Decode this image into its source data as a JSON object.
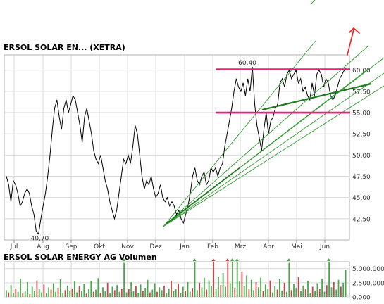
{
  "price_title": "ERSOL SOLAR EN... (XETRA)",
  "volume_title": "ERSOL SOLAR ENERGY AG Volumen",
  "colors": {
    "price_line": "#000000",
    "trend_light": "#2e9a2e",
    "trend_dark": "#1f7a1f",
    "level_line": "#ee1f7a",
    "arrow": "#ee2222",
    "volume_up": "#4aa84a",
    "volume_down": "#c04a4a",
    "grid": "#d8d8d8"
  },
  "chart_data": [
    {
      "type": "line",
      "title": "ERSOL SOLAR EN... (XETRA)",
      "x_tick_labels": [
        "Jul",
        "Aug",
        "Sep",
        "Okt",
        "Nov",
        "Dez",
        "Jan",
        "Feb",
        "Mrz",
        "Apr",
        "Mai",
        "Jun"
      ],
      "y_tick_labels": [
        "42,50",
        "45,00",
        "47,50",
        "50,00",
        "52,50",
        "55,00",
        "57,50",
        "60,00"
      ],
      "ylim": [
        40,
        61.8
      ],
      "grid": true,
      "annotations": [
        {
          "text": "40,70",
          "value": 40.7,
          "x_month_index": 0.5
        },
        {
          "text": "60,40",
          "value": 60.4,
          "x_month_index": 7.85
        }
      ],
      "horizontal_levels": [
        60.1,
        55.0
      ],
      "series": [
        {
          "values": [
            47.5,
            46.5,
            44.5,
            47.0,
            46.5,
            45.5,
            44.0,
            44.5,
            45.5,
            46.0,
            45.5,
            44.0,
            43.0,
            41.0,
            40.7,
            42.5,
            44.0,
            45.5,
            47.5,
            50.0,
            53.0,
            55.5,
            56.5,
            54.5,
            53.0,
            55.5,
            56.5,
            55.0,
            56.0,
            57.0,
            56.5,
            55.0,
            53.5,
            51.5,
            54.5,
            55.5,
            54.0,
            52.5,
            50.5,
            49.5,
            49.0,
            50.0,
            48.5,
            47.0,
            46.0,
            44.5,
            43.5,
            42.5,
            43.5,
            45.5,
            47.5,
            49.5,
            49.0,
            50.0,
            49.0,
            51.0,
            53.5,
            52.5,
            50.0,
            47.5,
            46.0,
            47.0,
            46.5,
            47.5,
            46.0,
            45.0,
            45.5,
            46.5,
            45.0,
            44.5,
            45.0,
            44.0,
            44.5,
            44.0,
            43.0,
            43.5,
            42.5,
            42.0,
            43.0,
            44.0,
            45.5,
            47.5,
            48.5,
            47.0,
            46.5,
            47.5,
            48.0,
            46.5,
            47.0,
            48.5,
            48.0,
            48.5,
            47.5,
            48.5,
            49.0,
            51.0,
            52.5,
            54.0,
            55.5,
            57.5,
            59.0,
            58.0,
            57.5,
            58.5,
            57.0,
            59.0,
            57.5,
            60.4,
            56.0,
            53.5,
            52.0,
            50.5,
            53.0,
            55.0,
            52.5,
            54.0,
            54.5,
            55.5,
            56.0,
            58.5,
            59.0,
            58.0,
            59.5,
            60.0,
            59.0,
            59.5,
            60.0,
            58.5,
            59.0,
            57.5,
            58.0,
            57.0,
            56.5,
            58.5,
            57.0,
            59.5,
            60.0,
            59.5,
            58.0,
            59.0,
            58.5,
            57.0,
            56.5,
            57.0,
            58.0,
            59.0,
            59.5,
            60.0,
            60.3
          ]
        }
      ]
    },
    {
      "type": "bar",
      "title": "ERSOL SOLAR ENERGY AG Volumen",
      "y_tick_labels": [
        "5.000.000",
        "2.500.000",
        "0,000"
      ],
      "ylim": [
        0,
        6200000
      ],
      "values": [
        1200000,
        800000,
        2100000,
        600000,
        1500000,
        900000,
        3200000,
        700000,
        1100000,
        2600000,
        500000,
        1800000,
        1000000,
        2900000,
        1400000,
        800000,
        2200000,
        600000,
        1700000,
        1300000,
        2400000,
        900000,
        1600000,
        3100000,
        700000,
        1200000,
        2000000,
        1000000,
        1500000,
        2700000,
        800000,
        1900000,
        1100000,
        2300000,
        600000,
        1400000,
        2800000,
        900000,
        1300000,
        3300000,
        700000,
        1700000,
        1000000,
        2500000,
        600000,
        1800000,
        1200000,
        2100000,
        900000,
        1500000,
        6000000,
        800000,
        1400000,
        2600000,
        1000000,
        1900000,
        700000,
        2200000,
        1100000,
        1600000,
        3000000,
        800000,
        1300000,
        2400000,
        900000,
        1700000,
        1200000,
        2000000,
        600000,
        1500000,
        2800000,
        1000000,
        1400000,
        2300000,
        700000,
        1800000,
        1100000,
        2600000,
        900000,
        1600000,
        6100000,
        1200000,
        2500000,
        1700000,
        3400000,
        1300000,
        2900000,
        1900000,
        6200000,
        1500000,
        3600000,
        2100000,
        4200000,
        1800000,
        6200000,
        2400000,
        6100000,
        1600000,
        6200000,
        2700000,
        4500000,
        1900000,
        3800000,
        1500000,
        3000000,
        1200000,
        2600000,
        1700000,
        3400000,
        1000000,
        2200000,
        1400000,
        2900000,
        800000,
        1900000,
        1300000,
        3100000,
        1100000,
        2500000,
        900000,
        6000000,
        1200000,
        2300000,
        1600000,
        3500000,
        1000000,
        2000000,
        1400000,
        2800000,
        700000,
        1800000,
        1100000,
        2400000,
        1500000,
        3200000,
        900000,
        2100000,
        6100000,
        1700000,
        2600000,
        1300000,
        3000000,
        1800000,
        2500000,
        4800000
      ]
    }
  ]
}
